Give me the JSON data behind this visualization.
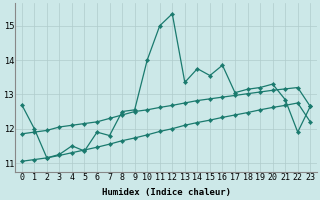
{
  "xlabel": "Humidex (Indice chaleur)",
  "background_color": "#cce8e8",
  "grid_color": "#b0cccc",
  "line_color": "#1a7a6e",
  "x": [
    0,
    1,
    2,
    3,
    4,
    5,
    6,
    7,
    8,
    9,
    10,
    11,
    12,
    13,
    14,
    15,
    16,
    17,
    18,
    19,
    20,
    21,
    22,
    23
  ],
  "y_jagged": [
    12.7,
    12.0,
    11.15,
    11.25,
    11.5,
    11.35,
    11.9,
    11.8,
    12.5,
    12.55,
    14.0,
    15.0,
    15.35,
    13.35,
    13.75,
    13.55,
    13.85,
    13.05,
    13.15,
    13.2,
    13.3,
    12.85,
    11.9,
    12.65
  ],
  "y_upper": [
    11.85,
    11.9,
    11.95,
    12.05,
    12.1,
    12.15,
    12.2,
    12.3,
    12.4,
    12.5,
    12.55,
    12.62,
    12.68,
    12.75,
    12.82,
    12.87,
    12.92,
    12.97,
    13.02,
    13.07,
    13.12,
    13.16,
    13.2,
    12.65
  ],
  "y_lower": [
    11.05,
    11.1,
    11.15,
    11.22,
    11.3,
    11.38,
    11.46,
    11.55,
    11.65,
    11.73,
    11.82,
    11.92,
    12.0,
    12.1,
    12.18,
    12.25,
    12.33,
    12.4,
    12.47,
    12.55,
    12.62,
    12.68,
    12.75,
    12.2
  ],
  "ylim": [
    10.75,
    15.65
  ],
  "yticks": [
    11,
    12,
    13,
    14,
    15
  ],
  "xlim": [
    -0.5,
    23.5
  ],
  "markersize": 2.2,
  "linewidth": 0.9,
  "label_fontsize": 6.5,
  "tick_fontsize": 6.0
}
